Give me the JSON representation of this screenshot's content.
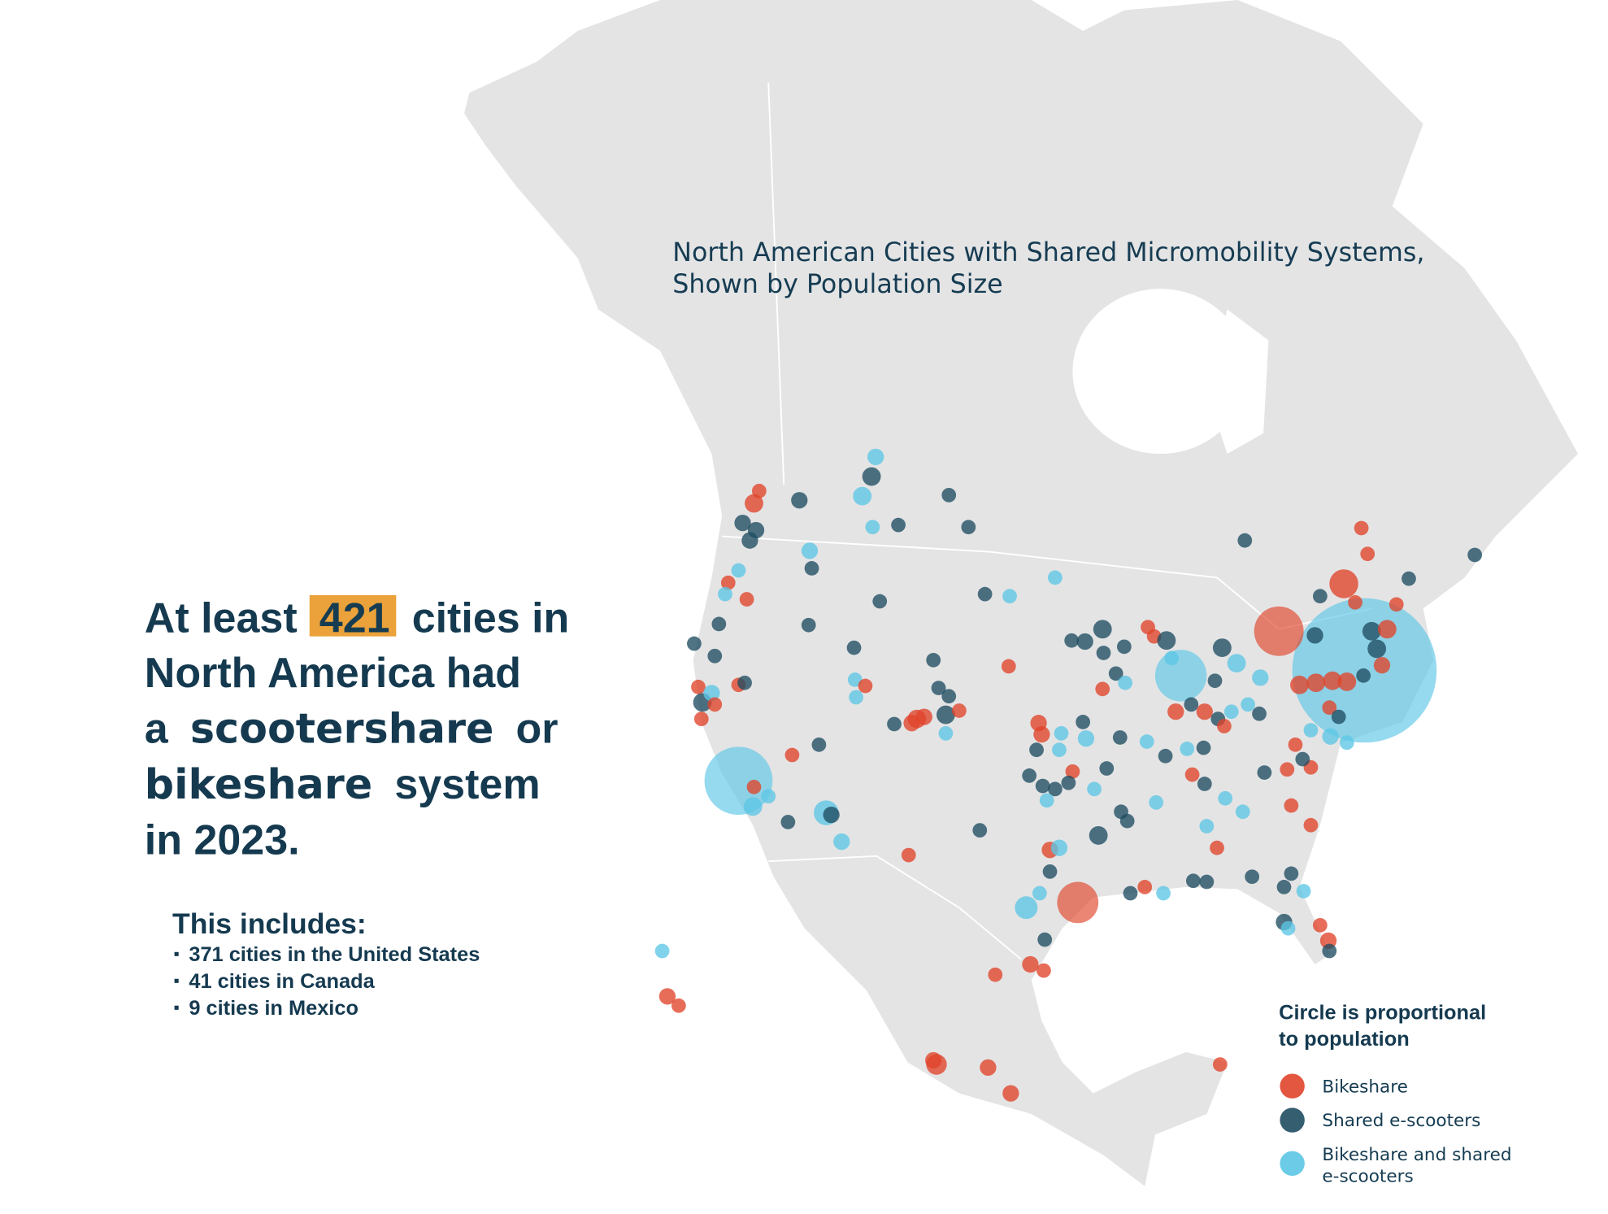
{
  "map": {
    "title": [
      "North American Cities with Shared Micromobility Systems,",
      "Shown by Population Size"
    ],
    "legend": {
      "title": [
        "Circle is proportional",
        "to population"
      ],
      "items": [
        {
          "name": [
            "Bikeshare"
          ],
          "color": "#e0442a"
        },
        {
          "name": [
            "Shared e-scooters"
          ],
          "color": "#1f4d62"
        },
        {
          "name": [
            "Bikeshare and shared",
            "e-scooters"
          ],
          "color": "#5cc6e6"
        }
      ]
    }
  },
  "headline": [
    [
      "At least",
      "421",
      "cities in"
    ],
    [
      "North America had"
    ],
    [
      "a",
      "scootershare",
      "or"
    ],
    [
      "bikeshare",
      "system"
    ],
    [
      "in 2023."
    ]
  ],
  "includes": {
    "heading": "This includes:",
    "items": [
      "371 cities in the United States",
      "41 cities in Canada",
      "9 cities in Mexico"
    ]
  }
}
